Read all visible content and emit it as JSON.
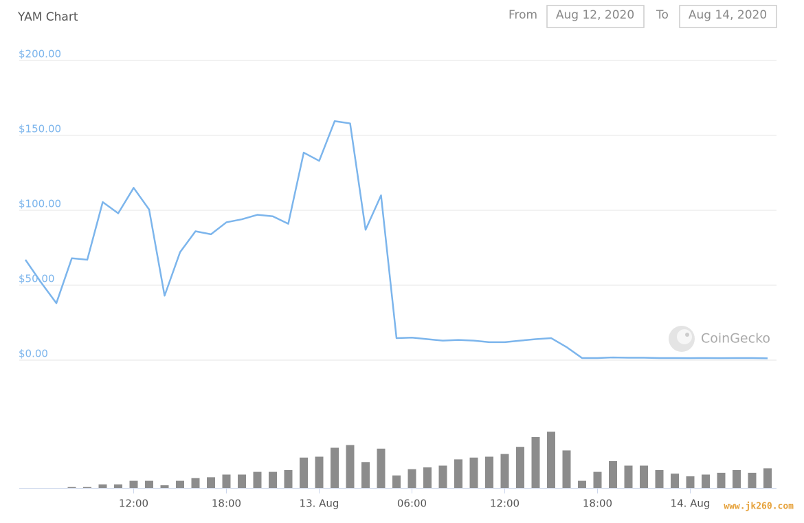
{
  "chart_data": {
    "type": "line",
    "title": "YAM Chart",
    "from_label": "From",
    "from_date": "Aug 12, 2020",
    "to_label": "To",
    "to_date": "Aug 14, 2020",
    "watermark": "CoinGecko",
    "site_mark": "www.jk260.com",
    "x": [
      "12. Aug 05:00",
      "12. Aug 06:00",
      "12. Aug 07:00",
      "12. Aug 08:00",
      "12. Aug 09:00",
      "12. Aug 10:00",
      "12. Aug 11:00",
      "12. Aug 12:00",
      "12. Aug 13:00",
      "12. Aug 14:00",
      "12. Aug 15:00",
      "12. Aug 16:00",
      "12. Aug 17:00",
      "12. Aug 18:00",
      "12. Aug 19:00",
      "12. Aug 20:00",
      "12. Aug 21:00",
      "12. Aug 22:00",
      "12. Aug 23:00",
      "13. Aug 00:00",
      "13. Aug 01:00",
      "13. Aug 02:00",
      "13. Aug 03:00",
      "13. Aug 04:00",
      "13. Aug 05:00",
      "13. Aug 06:00",
      "13. Aug 07:00",
      "13. Aug 08:00",
      "13. Aug 09:00",
      "13. Aug 10:00",
      "13. Aug 11:00",
      "13. Aug 12:00",
      "13. Aug 13:00",
      "13. Aug 14:00",
      "13. Aug 15:00",
      "13. Aug 16:00",
      "13. Aug 17:00",
      "13. Aug 18:00",
      "13. Aug 19:00",
      "13. Aug 20:00",
      "13. Aug 21:00",
      "13. Aug 22:00",
      "13. Aug 23:00",
      "14. Aug 00:00",
      "14. Aug 01:00",
      "14. Aug 02:00",
      "14. Aug 03:00",
      "14. Aug 04:00",
      "14. Aug 05:00"
    ],
    "xlim": [
      "12. Aug 05:00",
      "14. Aug 05:00"
    ],
    "xticks": [
      {
        "value": "12. Aug 12:00",
        "label": "12:00"
      },
      {
        "value": "12. Aug 18:00",
        "label": "18:00"
      },
      {
        "value": "13. Aug 00:00",
        "label": "13. Aug"
      },
      {
        "value": "13. Aug 06:00",
        "label": "06:00"
      },
      {
        "value": "13. Aug 12:00",
        "label": "12:00"
      },
      {
        "value": "13. Aug 18:00",
        "label": "18:00"
      },
      {
        "value": "14. Aug 00:00",
        "label": "14. Aug"
      }
    ],
    "ylim": [
      0,
      200
    ],
    "yticks": [
      {
        "value": 0,
        "label": "$0.00"
      },
      {
        "value": 50,
        "label": "$50.00"
      },
      {
        "value": 100,
        "label": "$100.00"
      },
      {
        "value": 150,
        "label": "$150.00"
      },
      {
        "value": 200,
        "label": "$200.00"
      }
    ],
    "y2lim": [
      0,
      100
    ],
    "grid": true,
    "series": [
      {
        "color": "#7cb5ec",
        "values": [
          67,
          52,
          38,
          68,
          67,
          105.5,
          98,
          115,
          100.5,
          43,
          72,
          86,
          84,
          92,
          94,
          97,
          96,
          91,
          138.5,
          133,
          159.5,
          158,
          87,
          110,
          14.7,
          15,
          14,
          13,
          13.5,
          13,
          12,
          12,
          13,
          14,
          14.7,
          8.7,
          1.4,
          1.4,
          1.8,
          1.6,
          1.6,
          1.4,
          1.4,
          1.3,
          1.4,
          1.3,
          1.4,
          1.4,
          1.2
        ]
      },
      {
        "type": "column",
        "axis": "y2",
        "color": "#8c8c8c",
        "values": [
          0,
          0,
          0,
          1,
          1,
          4,
          4,
          8,
          8,
          3,
          8,
          11,
          12,
          15,
          15,
          18,
          18,
          20,
          34,
          35,
          45,
          48,
          29,
          44,
          14,
          21,
          23,
          25,
          32,
          34,
          35,
          38,
          46,
          57,
          63,
          42,
          8,
          18,
          30,
          25,
          25,
          20,
          16,
          13,
          15,
          17,
          20,
          17,
          22
        ]
      }
    ]
  }
}
